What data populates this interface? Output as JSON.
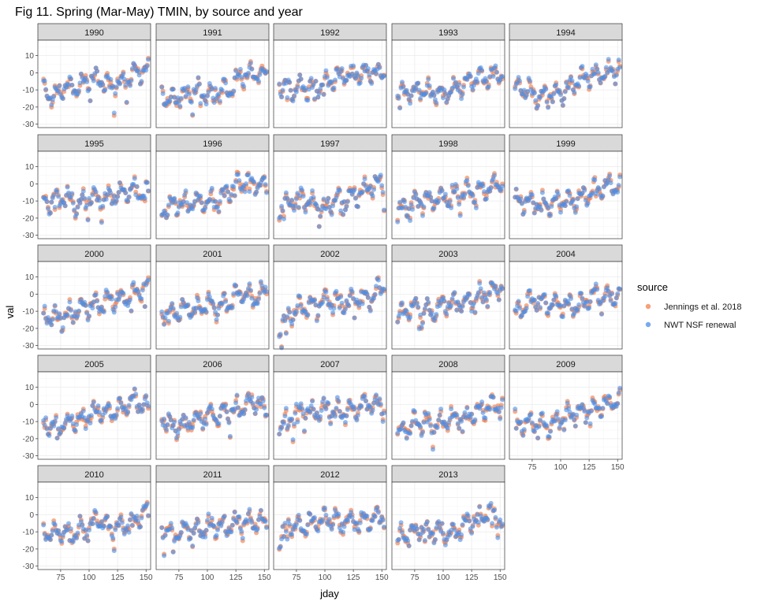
{
  "chart_data": {
    "type": "scatter",
    "title": "Fig 11. Spring (Mar-May) TMIN, by source and year",
    "xlabel": "jday",
    "ylabel": "val",
    "xlim": [
      55,
      154
    ],
    "ylim": [
      -32,
      19
    ],
    "x_ticks": [
      75,
      100,
      125,
      150
    ],
    "x_tick_labels": [
      "75",
      "100",
      "125",
      "150"
    ],
    "y_ticks": [
      10,
      0,
      -10,
      -20,
      -30
    ],
    "y_tick_labels": [
      "10",
      "0",
      "-10",
      "-20",
      "-30"
    ],
    "legend": {
      "title": "source",
      "position": "right",
      "entries": [
        {
          "name": "Jennings et al. 2018",
          "color": "#f4804c"
        },
        {
          "name": "NWT NSF renewal",
          "color": "#4a8ee8"
        }
      ]
    },
    "panels": [
      {
        "year": "1990",
        "profile": [
          [
            60,
            -11
          ],
          [
            70,
            -14
          ],
          [
            80,
            -7
          ],
          [
            90,
            -8
          ],
          [
            100,
            -5
          ],
          [
            110,
            -3
          ],
          [
            120,
            -9
          ],
          [
            130,
            -5
          ],
          [
            140,
            0
          ],
          [
            152,
            2
          ]
        ]
      },
      {
        "year": "1991",
        "profile": [
          [
            60,
            -12
          ],
          [
            68,
            -17
          ],
          [
            80,
            -13
          ],
          [
            90,
            -10
          ],
          [
            100,
            -12
          ],
          [
            110,
            -9
          ],
          [
            120,
            -10
          ],
          [
            130,
            -1
          ],
          [
            140,
            -1
          ],
          [
            152,
            -1
          ]
        ]
      },
      {
        "year": "1992",
        "profile": [
          [
            60,
            -7
          ],
          [
            70,
            -10
          ],
          [
            80,
            -8
          ],
          [
            90,
            -9
          ],
          [
            100,
            -6
          ],
          [
            110,
            -3
          ],
          [
            120,
            -1
          ],
          [
            130,
            0
          ],
          [
            140,
            1
          ],
          [
            152,
            -1
          ]
        ]
      },
      {
        "year": "1993",
        "profile": [
          [
            60,
            -13
          ],
          [
            70,
            -11
          ],
          [
            80,
            -10
          ],
          [
            90,
            -11
          ],
          [
            100,
            -12
          ],
          [
            110,
            -8
          ],
          [
            120,
            -7
          ],
          [
            130,
            -3
          ],
          [
            140,
            -2
          ],
          [
            152,
            0
          ]
        ]
      },
      {
        "year": "1994",
        "profile": [
          [
            60,
            -10
          ],
          [
            70,
            -9
          ],
          [
            80,
            -14
          ],
          [
            90,
            -13
          ],
          [
            100,
            -12
          ],
          [
            110,
            -7
          ],
          [
            120,
            -3
          ],
          [
            130,
            -1
          ],
          [
            140,
            0
          ],
          [
            152,
            2
          ]
        ]
      },
      {
        "year": "1995",
        "profile": [
          [
            60,
            -11
          ],
          [
            70,
            -9
          ],
          [
            80,
            -8
          ],
          [
            90,
            -12
          ],
          [
            100,
            -8
          ],
          [
            110,
            -10
          ],
          [
            120,
            -7
          ],
          [
            130,
            -5
          ],
          [
            140,
            -3
          ],
          [
            152,
            -5
          ]
        ]
      },
      {
        "year": "1996",
        "profile": [
          [
            60,
            -16
          ],
          [
            70,
            -13
          ],
          [
            80,
            -12
          ],
          [
            90,
            -10
          ],
          [
            100,
            -11
          ],
          [
            110,
            -9
          ],
          [
            120,
            -4
          ],
          [
            130,
            1
          ],
          [
            140,
            1
          ],
          [
            152,
            -2
          ]
        ]
      },
      {
        "year": "1997",
        "profile": [
          [
            60,
            -16
          ],
          [
            70,
            -11
          ],
          [
            80,
            -8
          ],
          [
            90,
            -12
          ],
          [
            100,
            -15
          ],
          [
            110,
            -9
          ],
          [
            120,
            -8
          ],
          [
            130,
            -5
          ],
          [
            140,
            -1
          ],
          [
            152,
            0
          ]
        ]
      },
      {
        "year": "1998",
        "profile": [
          [
            60,
            -17
          ],
          [
            70,
            -13
          ],
          [
            80,
            -9
          ],
          [
            90,
            -10
          ],
          [
            100,
            -8
          ],
          [
            110,
            -6
          ],
          [
            120,
            -5
          ],
          [
            130,
            -4
          ],
          [
            140,
            -2
          ],
          [
            152,
            1
          ]
        ]
      },
      {
        "year": "1999",
        "profile": [
          [
            60,
            -11
          ],
          [
            70,
            -10
          ],
          [
            80,
            -11
          ],
          [
            90,
            -12
          ],
          [
            100,
            -9
          ],
          [
            110,
            -11
          ],
          [
            120,
            -7
          ],
          [
            130,
            -4
          ],
          [
            140,
            -1
          ],
          [
            152,
            -1
          ]
        ]
      },
      {
        "year": "2000",
        "profile": [
          [
            60,
            -11
          ],
          [
            70,
            -14
          ],
          [
            80,
            -13
          ],
          [
            90,
            -9
          ],
          [
            100,
            -7
          ],
          [
            110,
            -6
          ],
          [
            120,
            -3
          ],
          [
            130,
            -3
          ],
          [
            140,
            1
          ],
          [
            152,
            4
          ]
        ]
      },
      {
        "year": "2001",
        "profile": [
          [
            60,
            -12
          ],
          [
            70,
            -11
          ],
          [
            80,
            -8
          ],
          [
            90,
            -9
          ],
          [
            100,
            -6
          ],
          [
            110,
            -8
          ],
          [
            120,
            -4
          ],
          [
            130,
            1
          ],
          [
            140,
            -3
          ],
          [
            152,
            2
          ]
        ]
      },
      {
        "year": "2002",
        "profile": [
          [
            60,
            -22
          ],
          [
            70,
            -11
          ],
          [
            80,
            -8
          ],
          [
            90,
            -6
          ],
          [
            100,
            -4
          ],
          [
            110,
            -4
          ],
          [
            120,
            -5
          ],
          [
            130,
            -2
          ],
          [
            140,
            -2
          ],
          [
            152,
            6
          ]
        ]
      },
      {
        "year": "2003",
        "profile": [
          [
            60,
            -14
          ],
          [
            70,
            -9
          ],
          [
            80,
            -7
          ],
          [
            90,
            -11
          ],
          [
            100,
            -5
          ],
          [
            110,
            -6
          ],
          [
            120,
            -5
          ],
          [
            130,
            -3
          ],
          [
            140,
            1
          ],
          [
            152,
            5
          ]
        ]
      },
      {
        "year": "2004",
        "profile": [
          [
            60,
            -12
          ],
          [
            70,
            -5
          ],
          [
            80,
            -3
          ],
          [
            90,
            -6
          ],
          [
            100,
            -6
          ],
          [
            110,
            -8
          ],
          [
            120,
            -5
          ],
          [
            130,
            0
          ],
          [
            140,
            -1
          ],
          [
            152,
            -1
          ]
        ]
      },
      {
        "year": "2005",
        "profile": [
          [
            60,
            -11
          ],
          [
            70,
            -13
          ],
          [
            80,
            -11
          ],
          [
            90,
            -9
          ],
          [
            100,
            -6
          ],
          [
            110,
            -4
          ],
          [
            120,
            -5
          ],
          [
            130,
            -2
          ],
          [
            140,
            3
          ],
          [
            152,
            -3
          ]
        ]
      },
      {
        "year": "2006",
        "profile": [
          [
            60,
            -7
          ],
          [
            70,
            -13
          ],
          [
            80,
            -11
          ],
          [
            90,
            -9
          ],
          [
            100,
            -5
          ],
          [
            110,
            -6
          ],
          [
            120,
            -4
          ],
          [
            130,
            -3
          ],
          [
            140,
            2
          ],
          [
            152,
            -2
          ]
        ]
      },
      {
        "year": "2007",
        "profile": [
          [
            60,
            -13
          ],
          [
            70,
            -8
          ],
          [
            80,
            -3
          ],
          [
            90,
            -5
          ],
          [
            100,
            -3
          ],
          [
            110,
            -4
          ],
          [
            120,
            -5
          ],
          [
            130,
            -1
          ],
          [
            140,
            1
          ],
          [
            152,
            -1
          ]
        ]
      },
      {
        "year": "2008",
        "profile": [
          [
            60,
            -17
          ],
          [
            70,
            -13
          ],
          [
            80,
            -10
          ],
          [
            90,
            -12
          ],
          [
            100,
            -10
          ],
          [
            110,
            -8
          ],
          [
            120,
            -6
          ],
          [
            130,
            -5
          ],
          [
            140,
            -1
          ],
          [
            152,
            -1
          ]
        ]
      },
      {
        "year": "2009",
        "profile": [
          [
            60,
            -10
          ],
          [
            70,
            -11
          ],
          [
            80,
            -10
          ],
          [
            90,
            -14
          ],
          [
            100,
            -8
          ],
          [
            110,
            -6
          ],
          [
            120,
            -4
          ],
          [
            130,
            -3
          ],
          [
            140,
            1
          ],
          [
            152,
            2
          ]
        ]
      },
      {
        "year": "2010",
        "profile": [
          [
            60,
            -10
          ],
          [
            70,
            -10
          ],
          [
            80,
            -11
          ],
          [
            90,
            -10
          ],
          [
            100,
            -6
          ],
          [
            110,
            -3
          ],
          [
            120,
            -9
          ],
          [
            130,
            -6
          ],
          [
            140,
            -3
          ],
          [
            152,
            3
          ]
        ]
      },
      {
        "year": "2011",
        "profile": [
          [
            60,
            -7
          ],
          [
            70,
            -11
          ],
          [
            80,
            -9
          ],
          [
            90,
            -10
          ],
          [
            100,
            -7
          ],
          [
            110,
            -7
          ],
          [
            120,
            -7
          ],
          [
            130,
            -4
          ],
          [
            140,
            -4
          ],
          [
            152,
            -4
          ]
        ]
      },
      {
        "year": "2012",
        "profile": [
          [
            60,
            -13
          ],
          [
            70,
            -6
          ],
          [
            80,
            -7
          ],
          [
            90,
            -4
          ],
          [
            100,
            -3
          ],
          [
            110,
            -2
          ],
          [
            120,
            -4
          ],
          [
            130,
            -4
          ],
          [
            140,
            -3
          ],
          [
            152,
            0
          ]
        ]
      },
      {
        "year": "2013",
        "profile": [
          [
            60,
            -13
          ],
          [
            70,
            -11
          ],
          [
            80,
            -9
          ],
          [
            90,
            -9
          ],
          [
            100,
            -10
          ],
          [
            110,
            -11
          ],
          [
            120,
            -5
          ],
          [
            130,
            -2
          ],
          [
            140,
            2
          ],
          [
            152,
            -5
          ]
        ]
      }
    ]
  }
}
